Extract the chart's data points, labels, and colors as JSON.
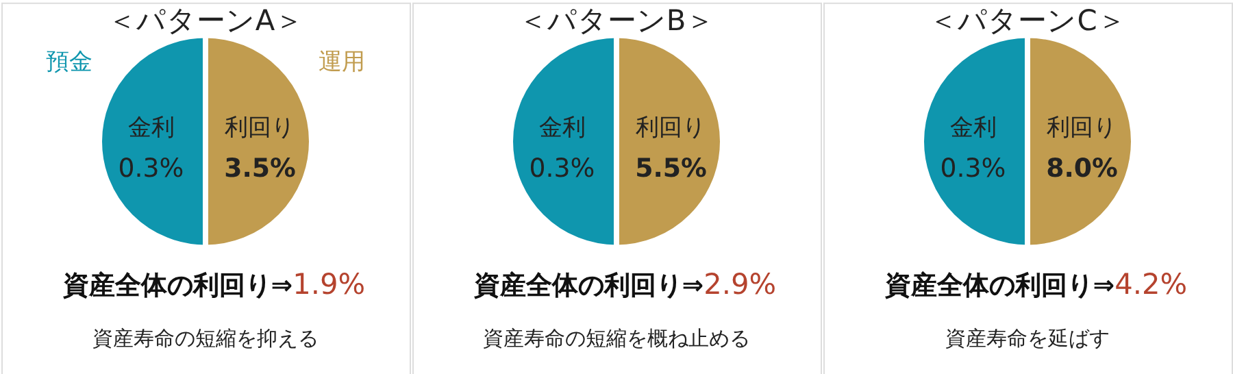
{
  "chart_data": [
    {
      "type": "pie",
      "title": "＜パターンA＞",
      "categories": [
        "預金",
        "運用"
      ],
      "values": [
        50,
        50
      ],
      "colors": [
        "#0f96ae",
        "#c19c4f"
      ],
      "annotations": [
        "金利",
        "0.3%",
        "利回り",
        "3.5%",
        "資産全体の利回り⇒",
        "1.9%",
        "資産寿命の短縮を抑える"
      ]
    },
    {
      "type": "pie",
      "title": "＜パターンB＞",
      "categories": [
        null,
        null
      ],
      "values": [
        50,
        50
      ],
      "colors": [
        "#0f96ae",
        "#c19c4f"
      ],
      "annotations": [
        "金利",
        "0.3%",
        "利回り",
        "5.5%",
        "資産全体の利回り⇒",
        "2.9%",
        "資産寿命の短縮を概ね止める"
      ]
    },
    {
      "type": "pie",
      "title": "＜パターンC＞",
      "categories": [
        null,
        null
      ],
      "values": [
        50,
        50
      ],
      "colors": [
        "#0f96ae",
        "#c19c4f"
      ],
      "annotations": [
        "金利",
        "0.3%",
        "利回り",
        "8.0%",
        "資産全体の利回り⇒",
        "4.2%",
        "資産寿命を延ばす"
      ]
    }
  ]
}
